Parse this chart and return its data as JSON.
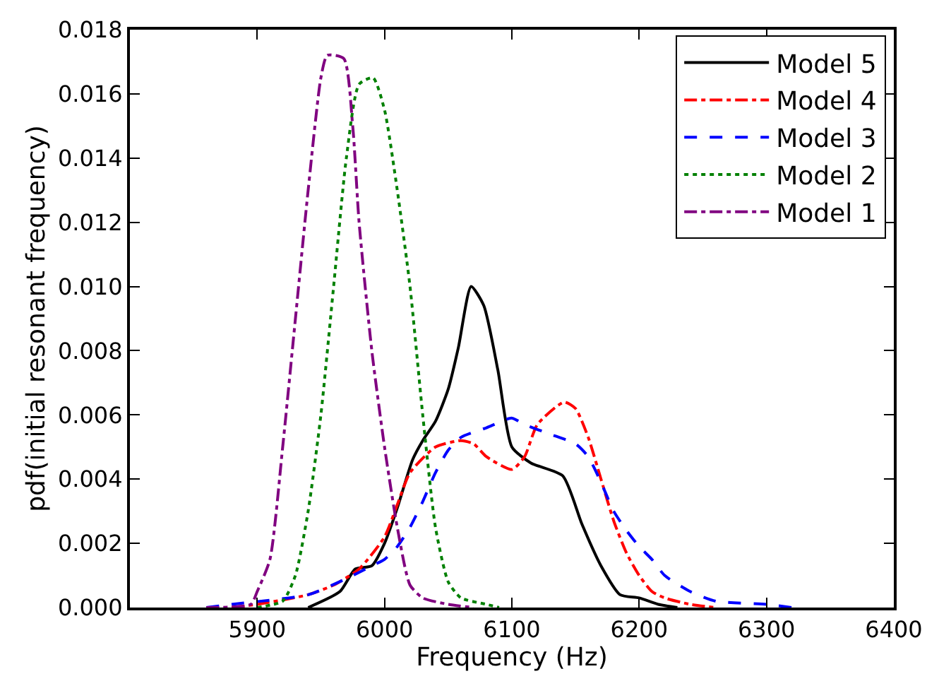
{
  "chart_data": {
    "type": "line",
    "xlabel": "Frequency (Hz)",
    "ylabel": "pdf(initial resonant frequency)",
    "xlim": [
      5800,
      6400
    ],
    "xticks": [
      5900,
      6000,
      6100,
      6200,
      6300,
      6400
    ],
    "ylim": [
      0,
      0.018
    ],
    "yticks": [
      {
        "value": 0,
        "label": "0.000"
      },
      {
        "value": 0.002,
        "label": "0.002"
      },
      {
        "value": 0.004,
        "label": "0.004"
      },
      {
        "value": 0.006,
        "label": "0.006"
      },
      {
        "value": 0.008,
        "label": "0.008"
      },
      {
        "value": 0.01,
        "label": "0.010"
      },
      {
        "value": 0.012,
        "label": "0.012"
      },
      {
        "value": 0.014,
        "label": "0.014"
      },
      {
        "value": 0.016,
        "label": "0.016"
      },
      {
        "value": 0.018,
        "label": "0.018"
      }
    ],
    "legend": "top right",
    "marker": "none",
    "series": [
      {
        "name": "Model 5",
        "color": "#000000",
        "line_style": "solid",
        "x": [
          5940,
          5965,
          5977,
          5990,
          6000,
          6010,
          6022,
          6030,
          6040,
          6050,
          6058,
          6068,
          6078,
          6089,
          6100,
          6115,
          6140,
          6155,
          6170,
          6185,
          6200,
          6215,
          6230
        ],
        "values": [
          0,
          0.0005,
          0.0012,
          0.0013,
          0.002,
          0.0031,
          0.0046,
          0.0052,
          0.0058,
          0.0068,
          0.0081,
          0.01,
          0.0094,
          0.0074,
          0.005,
          0.0045,
          0.0041,
          0.0026,
          0.0013,
          0.0004,
          0.0003,
          0.0001,
          0
        ]
      },
      {
        "name": "Model 4",
        "color": "#ff0000",
        "line_style": "dashdot",
        "x": [
          5880,
          5900,
          5940,
          5960,
          5980,
          6000,
          6010,
          6020,
          6040,
          6060,
          6070,
          6080,
          6100,
          6110,
          6120,
          6141,
          6150,
          6160,
          6170,
          6180,
          6190,
          6200,
          6210,
          6220,
          6240,
          6260
        ],
        "values": [
          0,
          0.0001,
          0.0004,
          0.0007,
          0.0012,
          0.0022,
          0.0032,
          0.0042,
          0.005,
          0.0052,
          0.0051,
          0.0047,
          0.0043,
          0.0047,
          0.0057,
          0.0064,
          0.0062,
          0.0053,
          0.004,
          0.0027,
          0.0017,
          0.001,
          0.0005,
          0.0003,
          0.0001,
          0
        ]
      },
      {
        "name": "Model 3",
        "color": "#0000ff",
        "line_style": "dashed",
        "x": [
          5860,
          5880,
          5940,
          5970,
          5990,
          6000,
          6010,
          6020,
          6030,
          6040,
          6050,
          6060,
          6080,
          6100,
          6110,
          6130,
          6150,
          6160,
          6170,
          6180,
          6190,
          6200,
          6210,
          6220,
          6240,
          6260,
          6300,
          6320
        ],
        "values": [
          0,
          0.0001,
          0.0004,
          0.0009,
          0.0013,
          0.0015,
          0.0019,
          0.0025,
          0.0033,
          0.0042,
          0.0049,
          0.0053,
          0.0056,
          0.0059,
          0.0057,
          0.0054,
          0.0051,
          0.0047,
          0.0039,
          0.003,
          0.0024,
          0.0019,
          0.0015,
          0.001,
          0.0005,
          0.0002,
          0.0001,
          0
        ]
      },
      {
        "name": "Model 2",
        "color": "#008000",
        "line_style": "dotted",
        "x": [
          5900,
          5920,
          5930,
          5940,
          5950,
          5960,
          5970,
          5980,
          5991,
          6000,
          6010,
          6020,
          6030,
          6040,
          6050,
          6060,
          6080,
          6090
        ],
        "values": [
          0,
          0.0002,
          0.001,
          0.003,
          0.006,
          0.01,
          0.014,
          0.0163,
          0.0165,
          0.0155,
          0.013,
          0.01,
          0.006,
          0.0025,
          0.0008,
          0.0003,
          0.0001,
          0
        ]
      },
      {
        "name": "Model 1",
        "color": "#800080",
        "line_style": "dashdot",
        "x": [
          5860,
          5895,
          5900,
          5910,
          5920,
          5930,
          5940,
          5950,
          5955,
          5968,
          5975,
          5980,
          5990,
          6000,
          6010,
          6020,
          6030,
          6050,
          6070
        ],
        "values": [
          0,
          0.0001,
          0.0005,
          0.0015,
          0.005,
          0.009,
          0.013,
          0.0165,
          0.0172,
          0.0171,
          0.015,
          0.012,
          0.008,
          0.005,
          0.0025,
          0.0007,
          0.0003,
          0.0001,
          0
        ]
      }
    ]
  }
}
